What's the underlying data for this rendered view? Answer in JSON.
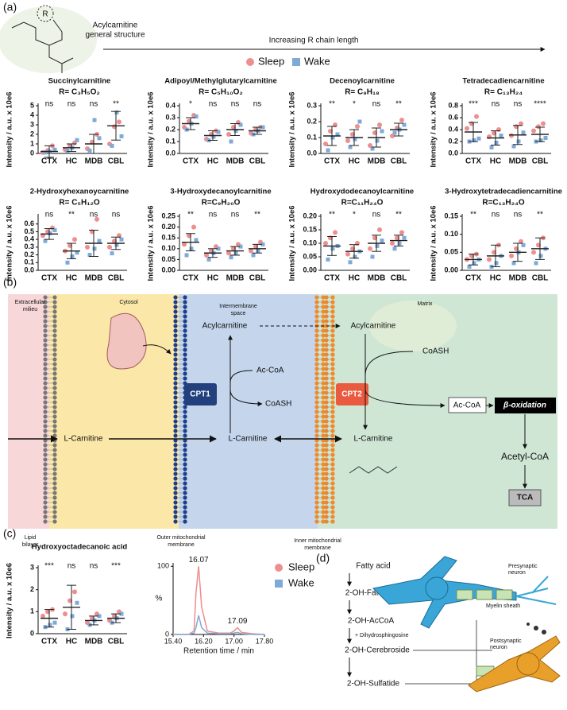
{
  "panel_a": {
    "label": "(a)",
    "structure_r": "R",
    "structure_label": [
      "Acylcarnitine",
      "general structure"
    ],
    "arrow_label": "Increasing R chain length",
    "legend": [
      {
        "name": "Sleep",
        "color": "#ee8e8e"
      },
      {
        "name": "Wake",
        "color": "#7eaad8"
      }
    ],
    "charts": [
      {
        "type": "dot",
        "title": "Succinylcarnitine",
        "subtitle": "R= C₃H₅O₂",
        "ylabel": "Intensity / a.u. x 10e6",
        "categories": [
          "CTX",
          "HC",
          "MDB",
          "CBL"
        ],
        "ylim": [
          0,
          5
        ],
        "yticks": [
          0,
          1,
          2,
          3,
          4,
          5
        ],
        "significance": [
          "ns",
          "ns",
          "ns",
          "**"
        ],
        "mean": [
          0.2,
          0.6,
          1.0,
          2.9
        ],
        "sd": [
          0.6,
          0.4,
          1.0,
          1.5
        ],
        "sleep": [
          [
            0.1,
            0.3,
            0.8
          ],
          [
            0.4,
            0.8,
            1.1
          ],
          [
            0.5,
            1.2,
            2.0
          ],
          [
            1.0,
            2.8,
            3.3
          ]
        ],
        "wake": [
          [
            0.1,
            0.2,
            0.4
          ],
          [
            0.3,
            0.6,
            1.4
          ],
          [
            0.3,
            3.5,
            1.6
          ],
          [
            0.8,
            4.3,
            1.8
          ]
        ]
      },
      {
        "type": "dot",
        "title": "Adipoyl/Methylglutarylcarnitine",
        "subtitle": "R= C₅H₁₀O₂",
        "ylabel": "Intensity / a.u. x 10e6",
        "categories": [
          "CTX",
          "HC",
          "MDB",
          "CBL"
        ],
        "ylim": [
          0,
          0.4
        ],
        "yticks": [
          {
            "value": 0,
            "label": "0.0"
          },
          0.1,
          0.2,
          0.3,
          0.4
        ],
        "significance": [
          "*",
          "ns",
          "ns",
          "ns"
        ],
        "mean": [
          0.25,
          0.15,
          0.2,
          0.19
        ],
        "sd": [
          0.05,
          0.04,
          0.05,
          0.03
        ],
        "sleep": [
          [
            0.22,
            0.27,
            0.32
          ],
          [
            0.12,
            0.16,
            0.19
          ],
          [
            0.16,
            0.22,
            0.26
          ],
          [
            0.17,
            0.2,
            0.22
          ]
        ],
        "wake": [
          [
            0.2,
            0.25,
            0.31
          ],
          [
            0.11,
            0.14,
            0.18
          ],
          [
            0.1,
            0.19,
            0.24
          ],
          [
            0.16,
            0.19,
            0.22
          ]
        ]
      },
      {
        "type": "dot",
        "title": "Decenoylcarnitine",
        "subtitle": "R= C₉H₁₈",
        "ylabel": "Intensity / a.u. x 10e6",
        "categories": [
          "CTX",
          "HC",
          "MDB",
          "CBL"
        ],
        "ylim": [
          0,
          0.3
        ],
        "yticks": [
          {
            "value": 0,
            "label": "0.0"
          },
          0.1,
          0.2,
          0.3
        ],
        "significance": [
          "**",
          "*",
          "ns",
          "**"
        ],
        "mean": [
          0.11,
          0.1,
          0.1,
          0.15
        ],
        "sd": [
          0.06,
          0.05,
          0.06,
          0.04
        ],
        "sleep": [
          [
            0.06,
            0.14,
            0.18
          ],
          [
            0.08,
            0.12,
            0.17
          ],
          [
            0.05,
            0.13,
            0.18
          ],
          [
            0.11,
            0.16,
            0.21
          ]
        ],
        "wake": [
          [
            0.02,
            0.1,
            0.12
          ],
          [
            0.04,
            0.09,
            0.2
          ],
          [
            0.03,
            0.08,
            0.14
          ],
          [
            0.13,
            0.15,
            0.18
          ]
        ]
      },
      {
        "type": "dot",
        "title": "Tetradecadiencarnitine",
        "subtitle": "R= C₁₃H₂₄",
        "ylabel": "Intensity / a.u. x 10e6",
        "categories": [
          "CTX",
          "HC",
          "MDB",
          "CBL"
        ],
        "ylim": [
          0,
          0.8
        ],
        "yticks": [
          {
            "value": 0,
            "label": "0.0"
          },
          0.2,
          0.4,
          0.6,
          0.8
        ],
        "significance": [
          "***",
          "ns",
          "ns",
          "****"
        ],
        "mean": [
          0.36,
          0.26,
          0.31,
          0.32
        ],
        "sd": [
          0.16,
          0.12,
          0.16,
          0.12
        ],
        "sleep": [
          [
            0.42,
            0.5,
            0.62
          ],
          [
            0.28,
            0.34,
            0.4
          ],
          [
            0.3,
            0.45,
            0.5
          ],
          [
            0.38,
            0.45,
            0.5
          ]
        ],
        "wake": [
          [
            0.2,
            0.22,
            0.25
          ],
          [
            0.1,
            0.18,
            0.3
          ],
          [
            0.12,
            0.2,
            0.35
          ],
          [
            0.2,
            0.22,
            0.26
          ]
        ]
      },
      {
        "type": "dot",
        "title": "2-Hydroxyhexanoycarnitine",
        "subtitle": "R= C₅H₁₂O",
        "ylabel": "Intensity / a.u. x 10e6",
        "categories": [
          "CTX",
          "HC",
          "MDB",
          "CBL"
        ],
        "ylim": [
          0,
          0.7
        ],
        "yticks": [
          {
            "value": 0,
            "label": "0.0"
          },
          0.1,
          0.2,
          0.3,
          0.4,
          0.5,
          0.6
        ],
        "significance": [
          "ns",
          "**",
          "ns",
          "ns"
        ],
        "mean": [
          0.47,
          0.25,
          0.35,
          0.35
        ],
        "sd": [
          0.07,
          0.1,
          0.17,
          0.08
        ],
        "sleep": [
          [
            0.45,
            0.5,
            0.55
          ],
          [
            0.25,
            0.32,
            0.4
          ],
          [
            0.3,
            0.5,
            0.66
          ],
          [
            0.3,
            0.38,
            0.45
          ]
        ],
        "wake": [
          [
            0.38,
            0.48,
            0.52
          ],
          [
            0.1,
            0.18,
            0.23
          ],
          [
            0.2,
            0.28,
            0.38
          ],
          [
            0.22,
            0.33,
            0.4
          ]
        ]
      },
      {
        "type": "dot",
        "title": "3-Hydroxydecanoylcarnitine",
        "subtitle": "R=C₉H₂₀O",
        "ylabel": "Intensity / a.u. x 10e6",
        "categories": [
          "CTX",
          "HC",
          "MDB",
          "CBL"
        ],
        "ylim": [
          0,
          0.25
        ],
        "yticks": [
          {
            "value": 0,
            "label": "0.00"
          },
          0.05,
          {
            "value": 0.1,
            "label": "0.10"
          },
          0.15,
          {
            "value": 0.2,
            "label": "0.20"
          },
          0.25
        ],
        "significance": [
          "**",
          "ns",
          "ns",
          "**"
        ],
        "mean": [
          0.13,
          0.08,
          0.09,
          0.1
        ],
        "sd": [
          0.04,
          0.02,
          0.02,
          0.02
        ],
        "sleep": [
          [
            0.12,
            0.16,
            0.2
          ],
          [
            0.07,
            0.09,
            0.11
          ],
          [
            0.08,
            0.1,
            0.12
          ],
          [
            0.09,
            0.11,
            0.13
          ]
        ],
        "wake": [
          [
            0.07,
            0.1,
            0.14
          ],
          [
            0.05,
            0.08,
            0.1
          ],
          [
            0.06,
            0.08,
            0.11
          ],
          [
            0.07,
            0.09,
            0.12
          ]
        ]
      },
      {
        "type": "dot",
        "title": "Hydroxydodecanoylcarnitine",
        "subtitle": "R=C₁₁H₂₄O",
        "ylabel": "Intensity / a.u. x 10e6",
        "categories": [
          "CTX",
          "HC",
          "MDB",
          "CBL"
        ],
        "ylim": [
          0,
          0.2
        ],
        "yticks": [
          {
            "value": 0,
            "label": "0.00"
          },
          0.05,
          {
            "value": 0.1,
            "label": "0.10"
          },
          0.15,
          {
            "value": 0.2,
            "label": "0.20"
          }
        ],
        "significance": [
          "**",
          "*",
          "ns",
          "**"
        ],
        "mean": [
          0.09,
          0.07,
          0.1,
          0.11
        ],
        "sd": [
          0.035,
          0.025,
          0.03,
          0.02
        ],
        "sleep": [
          [
            0.1,
            0.12,
            0.14
          ],
          [
            0.06,
            0.08,
            0.1
          ],
          [
            0.08,
            0.12,
            0.15
          ],
          [
            0.1,
            0.12,
            0.14
          ]
        ],
        "wake": [
          [
            0.04,
            0.08,
            0.09
          ],
          [
            0.03,
            0.05,
            0.07
          ],
          [
            0.05,
            0.09,
            0.11
          ],
          [
            0.08,
            0.1,
            0.12
          ]
        ]
      },
      {
        "type": "dot",
        "title": "3-Hydroxytetradecadiencarnitine",
        "subtitle": "R=C₁₃H₂₄O",
        "ylabel": "Intensity / a.u. x 10e6",
        "categories": [
          "CTX",
          "HC",
          "MDB",
          "CBL"
        ],
        "ylim": [
          0,
          0.15
        ],
        "yticks": [
          {
            "value": 0,
            "label": "0.00"
          },
          0.05,
          {
            "value": 0.1,
            "label": "0.10"
          },
          0.15
        ],
        "significance": [
          "**",
          "ns",
          "ns",
          "**"
        ],
        "mean": [
          0.03,
          0.04,
          0.05,
          0.06
        ],
        "sd": [
          0.015,
          0.03,
          0.025,
          0.03
        ],
        "sleep": [
          [
            0.03,
            0.04,
            0.045
          ],
          [
            0.03,
            0.05,
            0.07
          ],
          [
            0.04,
            0.06,
            0.08
          ],
          [
            0.05,
            0.07,
            0.09
          ]
        ],
        "wake": [
          [
            0.01,
            0.02,
            0.03
          ],
          [
            0.01,
            0.02,
            0.04
          ],
          [
            0.02,
            0.05,
            0.07
          ],
          [
            0.02,
            0.04,
            0.06
          ]
        ]
      }
    ]
  },
  "panel_b": {
    "label": "(b)",
    "extracellular": [
      "Extracellular",
      "milieu"
    ],
    "cytosol": "Cytosol",
    "intermembrane": [
      "Intermembrane",
      "space"
    ],
    "matrix": "Matrix",
    "lipid": [
      "Lipid",
      "bilayer"
    ],
    "outer": [
      "Outer mitochondrial",
      "membrane"
    ],
    "inner": [
      "Inner mitochondrial",
      "membrane"
    ],
    "acyl_ims": "Acylcarnitine",
    "acyl_matrix": "Acylcarnitine",
    "acoa_ims": "Ac-CoA",
    "coash_ims": "CoASH",
    "coash_matrix": "CoASH",
    "cpt1": "CPT1",
    "cpt2": "CPT2",
    "lcarn_out": "L-Carnitine",
    "lcarn_ims": "L-Carnitine",
    "lcarn_matrix": "L-Carnitine",
    "acoa_matrix": "Ac-CoA",
    "beta": "β-oxidation",
    "acetyl": "Acetyl-CoA",
    "tca": "TCA"
  },
  "panel_c": {
    "label": "(c)",
    "dot": {
      "type": "dot",
      "title": "Hydroxyoctadecanoic acid",
      "ylabel": "Intensity / a.u. x 10e6",
      "categories": [
        "CTX",
        "HC",
        "MDB",
        "CBL"
      ],
      "ylim": [
        0,
        3
      ],
      "yticks": [
        0,
        1,
        2,
        3
      ],
      "significance": [
        "***",
        "ns",
        "ns",
        "***"
      ],
      "mean": [
        0.7,
        1.2,
        0.6,
        0.7
      ],
      "sd": [
        0.4,
        1.0,
        0.2,
        0.2
      ],
      "sleep": [
        [
          0.8,
          1.0,
          1.1
        ],
        [
          0.9,
          1.5,
          1.9
        ],
        [
          0.5,
          0.7,
          0.9
        ],
        [
          0.6,
          0.8,
          1.0
        ]
      ],
      "wake": [
        [
          0.3,
          0.4,
          0.5
        ],
        [
          0.2,
          0.8,
          1.4
        ],
        [
          0.4,
          0.6,
          0.8
        ],
        [
          0.5,
          0.7,
          0.9
        ]
      ]
    },
    "chrom": {
      "type": "line",
      "ylabel": "%",
      "xlabel": "Retention time / min",
      "xlim": [
        15.4,
        17.8
      ],
      "xticks": [
        {
          "value": 15.4,
          "label": "15.40"
        },
        {
          "value": 16.2,
          "label": "16.20"
        },
        {
          "value": 17.0,
          "label": "17.00"
        },
        {
          "value": 17.8,
          "label": "17.80"
        }
      ],
      "ylim": [
        0,
        105
      ],
      "yticks": [
        0,
        100
      ],
      "x": [
        15.4,
        15.8,
        15.95,
        16.0,
        16.07,
        16.15,
        16.3,
        16.6,
        16.9,
        17.0,
        17.09,
        17.2,
        17.5,
        17.8
      ],
      "series": [
        {
          "name": "Sleep",
          "color": "#ee8e8e",
          "values": [
            0,
            0,
            5,
            60,
            100,
            40,
            5,
            2,
            2,
            5,
            10,
            3,
            1,
            0
          ]
        },
        {
          "name": "Wake",
          "color": "#7eaad8",
          "values": [
            0,
            0,
            2,
            10,
            28,
            10,
            2,
            1,
            1,
            2,
            3,
            1,
            0,
            0
          ]
        }
      ],
      "peaks": [
        16.07,
        17.09
      ]
    }
  },
  "panel_d": {
    "label": "(d)",
    "steps": [
      "Fatty acid",
      "2-OH-Fatty acid",
      "2-OH-AcCoA",
      "2-OH-Cerebroside",
      "2-OH-Sulfatide"
    ],
    "cofactor": "+ Dihydrosphingosine",
    "presynaptic": [
      "Presynaptic",
      "neuron"
    ],
    "myelin": "Myelin sheath",
    "postsynaptic": [
      "Postsynaptic",
      "neuron"
    ]
  }
}
